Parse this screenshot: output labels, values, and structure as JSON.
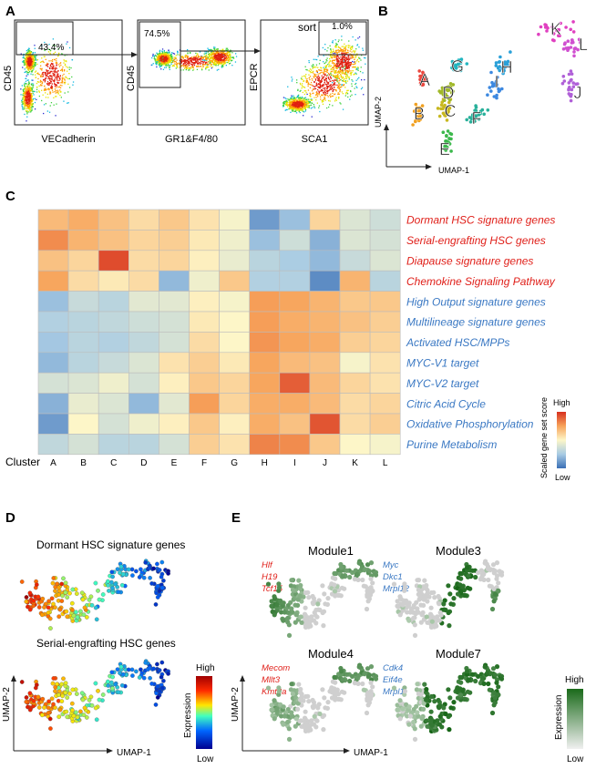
{
  "panels": {
    "A": "A",
    "B": "B",
    "C": "C",
    "D": "D",
    "E": "E"
  },
  "panel_a": {
    "plots": [
      {
        "ylabel": "CD45",
        "xlabel": "VECadherin",
        "gate_pct": "43.4%"
      },
      {
        "ylabel": "CD45",
        "xlabel": "GR1&F4/80",
        "gate_pct": "74.5%"
      },
      {
        "ylabel": "EPCR",
        "xlabel": "SCA1",
        "gate_pct": "1.0%",
        "gate_label": "sort"
      }
    ]
  },
  "panel_b": {
    "xlabel": "UMAP-1",
    "ylabel": "UMAP-2",
    "cluster_labels": [
      "A",
      "B",
      "C",
      "D",
      "E",
      "F",
      "G",
      "H",
      "I",
      "J",
      "K",
      "L"
    ],
    "cluster_colors": [
      "#e9473e",
      "#f0a020",
      "#c8b820",
      "#a0b828",
      "#3cb84c",
      "#28b09a",
      "#22b5c0",
      "#2aa0d8",
      "#3c88e0",
      "#b060d8",
      "#e040c0",
      "#d050d0"
    ]
  },
  "chart_data": {
    "type": "heatmap",
    "title": "",
    "x_axis_label": "Cluster",
    "categories": [
      "A",
      "B",
      "C",
      "D",
      "E",
      "F",
      "G",
      "H",
      "I",
      "J",
      "K",
      "L"
    ],
    "rows": [
      {
        "name": "Dormant HSC signature genes",
        "group": "red",
        "values": [
          0.68,
          0.72,
          0.66,
          0.58,
          0.64,
          0.56,
          0.48,
          0.12,
          0.22,
          0.6,
          0.4,
          0.36
        ]
      },
      {
        "name": "Serial-engrafting HSC genes",
        "group": "red",
        "values": [
          0.8,
          0.7,
          0.66,
          0.6,
          0.62,
          0.54,
          0.46,
          0.22,
          0.36,
          0.18,
          0.4,
          0.38
        ]
      },
      {
        "name": "Diapause signature genes",
        "group": "red",
        "values": [
          0.66,
          0.6,
          0.94,
          0.58,
          0.6,
          0.52,
          0.44,
          0.3,
          0.26,
          0.2,
          0.34,
          0.4
        ]
      },
      {
        "name": "Chemokine Signaling Pathway",
        "group": "red",
        "values": [
          0.74,
          0.58,
          0.54,
          0.58,
          0.2,
          0.46,
          0.64,
          0.28,
          0.28,
          0.08,
          0.7,
          0.3
        ]
      },
      {
        "name": "High Output signature genes",
        "group": "blue",
        "values": [
          0.22,
          0.34,
          0.3,
          0.42,
          0.42,
          0.52,
          0.48,
          0.76,
          0.74,
          0.7,
          0.64,
          0.64
        ]
      },
      {
        "name": "Multilineage signature genes",
        "group": "blue",
        "values": [
          0.28,
          0.3,
          0.32,
          0.36,
          0.38,
          0.54,
          0.5,
          0.76,
          0.72,
          0.7,
          0.66,
          0.62
        ]
      },
      {
        "name": "Activated HSC/MPPs",
        "group": "blue",
        "values": [
          0.24,
          0.3,
          0.28,
          0.32,
          0.38,
          0.58,
          0.5,
          0.78,
          0.74,
          0.72,
          0.62,
          0.6
        ]
      },
      {
        "name": "MYC-V1 target",
        "group": "blue",
        "values": [
          0.2,
          0.3,
          0.34,
          0.4,
          0.56,
          0.62,
          0.54,
          0.74,
          0.68,
          0.66,
          0.48,
          0.56
        ]
      },
      {
        "name": "MYC-V2 target",
        "group": "blue",
        "values": [
          0.38,
          0.4,
          0.46,
          0.38,
          0.52,
          0.64,
          0.6,
          0.74,
          0.9,
          0.68,
          0.6,
          0.56
        ]
      },
      {
        "name": "Citric Acid Cycle",
        "group": "blue",
        "values": [
          0.18,
          0.44,
          0.4,
          0.2,
          0.42,
          0.76,
          0.6,
          0.72,
          0.72,
          0.68,
          0.58,
          0.6
        ]
      },
      {
        "name": "Oxidative Phosphorylation",
        "group": "blue",
        "values": [
          0.12,
          0.5,
          0.38,
          0.46,
          0.52,
          0.64,
          0.52,
          0.72,
          0.66,
          0.92,
          0.58,
          0.62
        ]
      },
      {
        "name": "Purine Metabolism",
        "group": "blue",
        "values": [
          0.32,
          0.38,
          0.3,
          0.3,
          0.38,
          0.62,
          0.56,
          0.82,
          0.8,
          0.64,
          0.5,
          0.48
        ]
      }
    ],
    "colorbar": {
      "high": "High",
      "low": "Low",
      "label": "Scaled gene set score"
    }
  },
  "panel_d": {
    "titles": [
      "Dormant HSC signature genes",
      "Serial-engrafting HSC genes"
    ],
    "xlabel": "UMAP-1",
    "ylabel": "UMAP-2",
    "colorbar": {
      "high": "High",
      "low": "Low",
      "label": "Expression"
    }
  },
  "panel_e": {
    "modules": [
      {
        "title": "Module1",
        "genes": [
          "Hlf",
          "H19",
          "Tcf15"
        ],
        "gene_color": "red"
      },
      {
        "title": "Module3",
        "genes": [
          "Myc",
          "Dkc1",
          "Mrpl12"
        ],
        "gene_color": "blue"
      },
      {
        "title": "Module4",
        "genes": [
          "Mecom",
          "Mllt3",
          "Kmt2a"
        ],
        "gene_color": "red"
      },
      {
        "title": "Module7",
        "genes": [
          "Cdk4",
          "Eif4e",
          "Mrpl1"
        ],
        "gene_color": "blue"
      }
    ],
    "xlabel": "UMAP-1",
    "ylabel": "UMAP-2",
    "colorbar": {
      "high": "High",
      "low": "Low",
      "label": "Expression"
    }
  },
  "colors": {
    "label_red": "#e0201a",
    "label_blue": "#3a78c3",
    "module_green": "#1d6b1d"
  }
}
